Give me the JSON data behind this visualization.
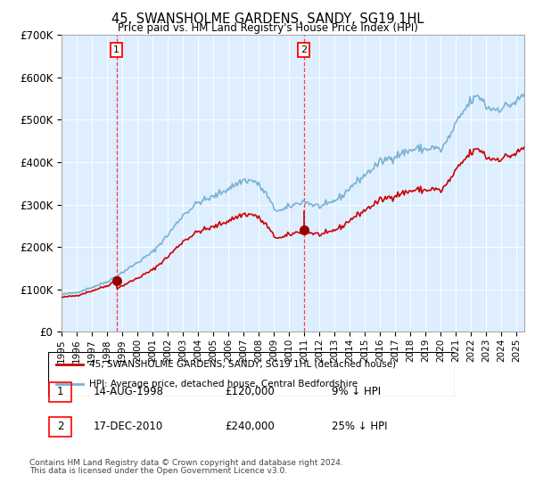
{
  "title": "45, SWANSHOLME GARDENS, SANDY, SG19 1HL",
  "subtitle": "Price paid vs. HM Land Registry's House Price Index (HPI)",
  "ylim": [
    0,
    700000
  ],
  "xlim_start": 1995.0,
  "xlim_end": 2025.5,
  "legend_line1": "45, SWANSHOLME GARDENS, SANDY, SG19 1HL (detached house)",
  "legend_line2": "HPI: Average price, detached house, Central Bedfordshire",
  "line_color_red": "#cc0000",
  "line_color_blue": "#7ab0d4",
  "point1_x": 1998.617,
  "point1_y": 120000,
  "point1_label": "1",
  "point1_date": "14-AUG-1998",
  "point1_price": "£120,000",
  "point1_hpi": "9% ↓ HPI",
  "point2_x": 2010.958,
  "point2_y": 240000,
  "point2_label": "2",
  "point2_date": "17-DEC-2010",
  "point2_price": "£240,000",
  "point2_hpi": "25% ↓ HPI",
  "footnote1": "Contains HM Land Registry data © Crown copyright and database right 2024.",
  "footnote2": "This data is licensed under the Open Government Licence v3.0.",
  "background_color": "#ddeeff"
}
